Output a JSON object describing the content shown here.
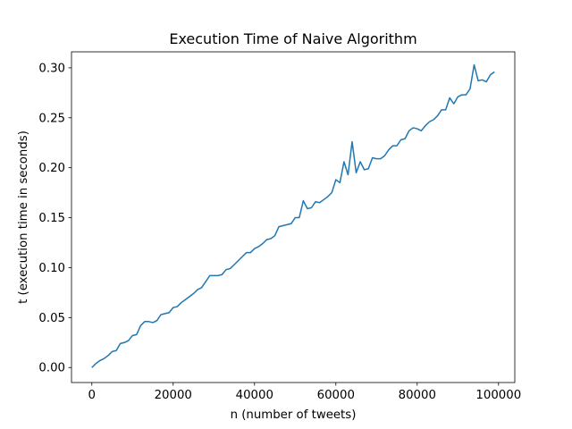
{
  "chart_data": {
    "type": "line",
    "title": "Execution Time of Naive Algorithm",
    "xlabel": "n (number of tweets)",
    "ylabel": "t (execution time in seconds)",
    "xlim": [
      -5000,
      104000
    ],
    "ylim": [
      -0.015,
      0.316
    ],
    "xticks": [
      0,
      20000,
      40000,
      60000,
      80000,
      100000
    ],
    "yticks": [
      0.0,
      0.05,
      0.1,
      0.15,
      0.2,
      0.25,
      0.3
    ],
    "ytick_labels": [
      "0.00",
      "0.05",
      "0.10",
      "0.15",
      "0.20",
      "0.25",
      "0.30"
    ],
    "grid": false,
    "legend": "none",
    "series_color": "#1f77b4",
    "series": [
      {
        "x": [
          0,
          1000,
          2000,
          3000,
          4000,
          5000,
          6000,
          7000,
          8000,
          9000,
          10000,
          11000,
          12000,
          13000,
          14000,
          15000,
          16000,
          17000,
          18000,
          19000,
          20000,
          21000,
          22000,
          23000,
          24000,
          25000,
          26000,
          27000,
          28000,
          29000,
          30000,
          31000,
          32000,
          33000,
          34000,
          35000,
          36000,
          37000,
          38000,
          39000,
          40000,
          41000,
          42000,
          43000,
          44000,
          45000,
          46000,
          47000,
          48000,
          49000,
          50000,
          51000,
          52000,
          53000,
          54000,
          55000,
          56000,
          57000,
          58000,
          59000,
          60000,
          61000,
          62000,
          63000,
          64000,
          65000,
          66000,
          67000,
          68000,
          69000,
          70000,
          71000,
          72000,
          73000,
          74000,
          75000,
          76000,
          77000,
          78000,
          79000,
          80000,
          81000,
          82000,
          83000,
          84000,
          85000,
          86000,
          87000,
          88000,
          89000,
          90000,
          91000,
          92000,
          93000,
          94000,
          95000,
          96000,
          97000,
          98000,
          99000
        ],
        "y": [
          0.0,
          0.004,
          0.007,
          0.009,
          0.012,
          0.016,
          0.017,
          0.024,
          0.025,
          0.027,
          0.032,
          0.033,
          0.042,
          0.046,
          0.046,
          0.045,
          0.047,
          0.053,
          0.054,
          0.055,
          0.06,
          0.061,
          0.065,
          0.068,
          0.071,
          0.074,
          0.078,
          0.08,
          0.086,
          0.092,
          0.092,
          0.092,
          0.093,
          0.098,
          0.099,
          0.103,
          0.107,
          0.111,
          0.115,
          0.115,
          0.119,
          0.121,
          0.124,
          0.128,
          0.129,
          0.132,
          0.141,
          0.142,
          0.143,
          0.144,
          0.15,
          0.15,
          0.167,
          0.159,
          0.16,
          0.166,
          0.165,
          0.168,
          0.171,
          0.175,
          0.188,
          0.185,
          0.206,
          0.193,
          0.226,
          0.195,
          0.206,
          0.198,
          0.199,
          0.21,
          0.209,
          0.209,
          0.212,
          0.218,
          0.222,
          0.222,
          0.228,
          0.229,
          0.237,
          0.24,
          0.239,
          0.237,
          0.242,
          0.246,
          0.248,
          0.252,
          0.258,
          0.258,
          0.27,
          0.264,
          0.271,
          0.273,
          0.273,
          0.279,
          0.303,
          0.287,
          0.288,
          0.286,
          0.293,
          0.296
        ]
      }
    ]
  }
}
